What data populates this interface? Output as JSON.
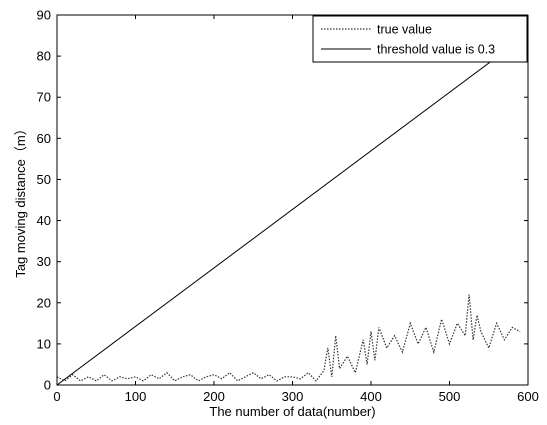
{
  "chart_data": {
    "type": "line",
    "xlabel": "The number of data(number)",
    "ylabel": "Tag moving distance（m）",
    "xlim": [
      0,
      600
    ],
    "ylim": [
      0,
      90
    ],
    "xticks": [
      0,
      100,
      200,
      300,
      400,
      500,
      600
    ],
    "yticks": [
      0,
      10,
      20,
      30,
      40,
      50,
      60,
      70,
      80,
      90
    ],
    "grid": false,
    "legend_position": "top-right",
    "series": [
      {
        "name": "true value",
        "style": "dotted",
        "color": "#333333",
        "x": [
          0,
          10,
          20,
          30,
          40,
          50,
          60,
          70,
          80,
          90,
          100,
          110,
          120,
          130,
          140,
          150,
          160,
          170,
          180,
          190,
          200,
          210,
          220,
          230,
          240,
          250,
          260,
          270,
          280,
          290,
          300,
          310,
          320,
          330,
          340,
          345,
          350,
          355,
          360,
          370,
          380,
          390,
          395,
          400,
          405,
          410,
          420,
          430,
          440,
          450,
          460,
          470,
          480,
          490,
          500,
          510,
          520,
          525,
          530,
          535,
          540,
          550,
          560,
          570,
          580,
          590
        ],
        "y": [
          2,
          1,
          2.5,
          1,
          2,
          1,
          2.5,
          1,
          2,
          1.5,
          2,
          1,
          2.5,
          1.5,
          3,
          1,
          2,
          2.5,
          1,
          2,
          2.5,
          1.5,
          3,
          1,
          2,
          3,
          1.5,
          2.5,
          1,
          2,
          2,
          1.5,
          3,
          1,
          3.5,
          9,
          2,
          12,
          4,
          7,
          3,
          11,
          5,
          13,
          6,
          14,
          9,
          12,
          8,
          15,
          10,
          14,
          8,
          16,
          10,
          15,
          12,
          22,
          11,
          17,
          13,
          9,
          15,
          11,
          14,
          13
        ]
      },
      {
        "name": "threshold value is 0.3",
        "style": "solid",
        "color": "#000000",
        "x": [
          0,
          590
        ],
        "y": [
          0,
          84
        ]
      }
    ]
  }
}
